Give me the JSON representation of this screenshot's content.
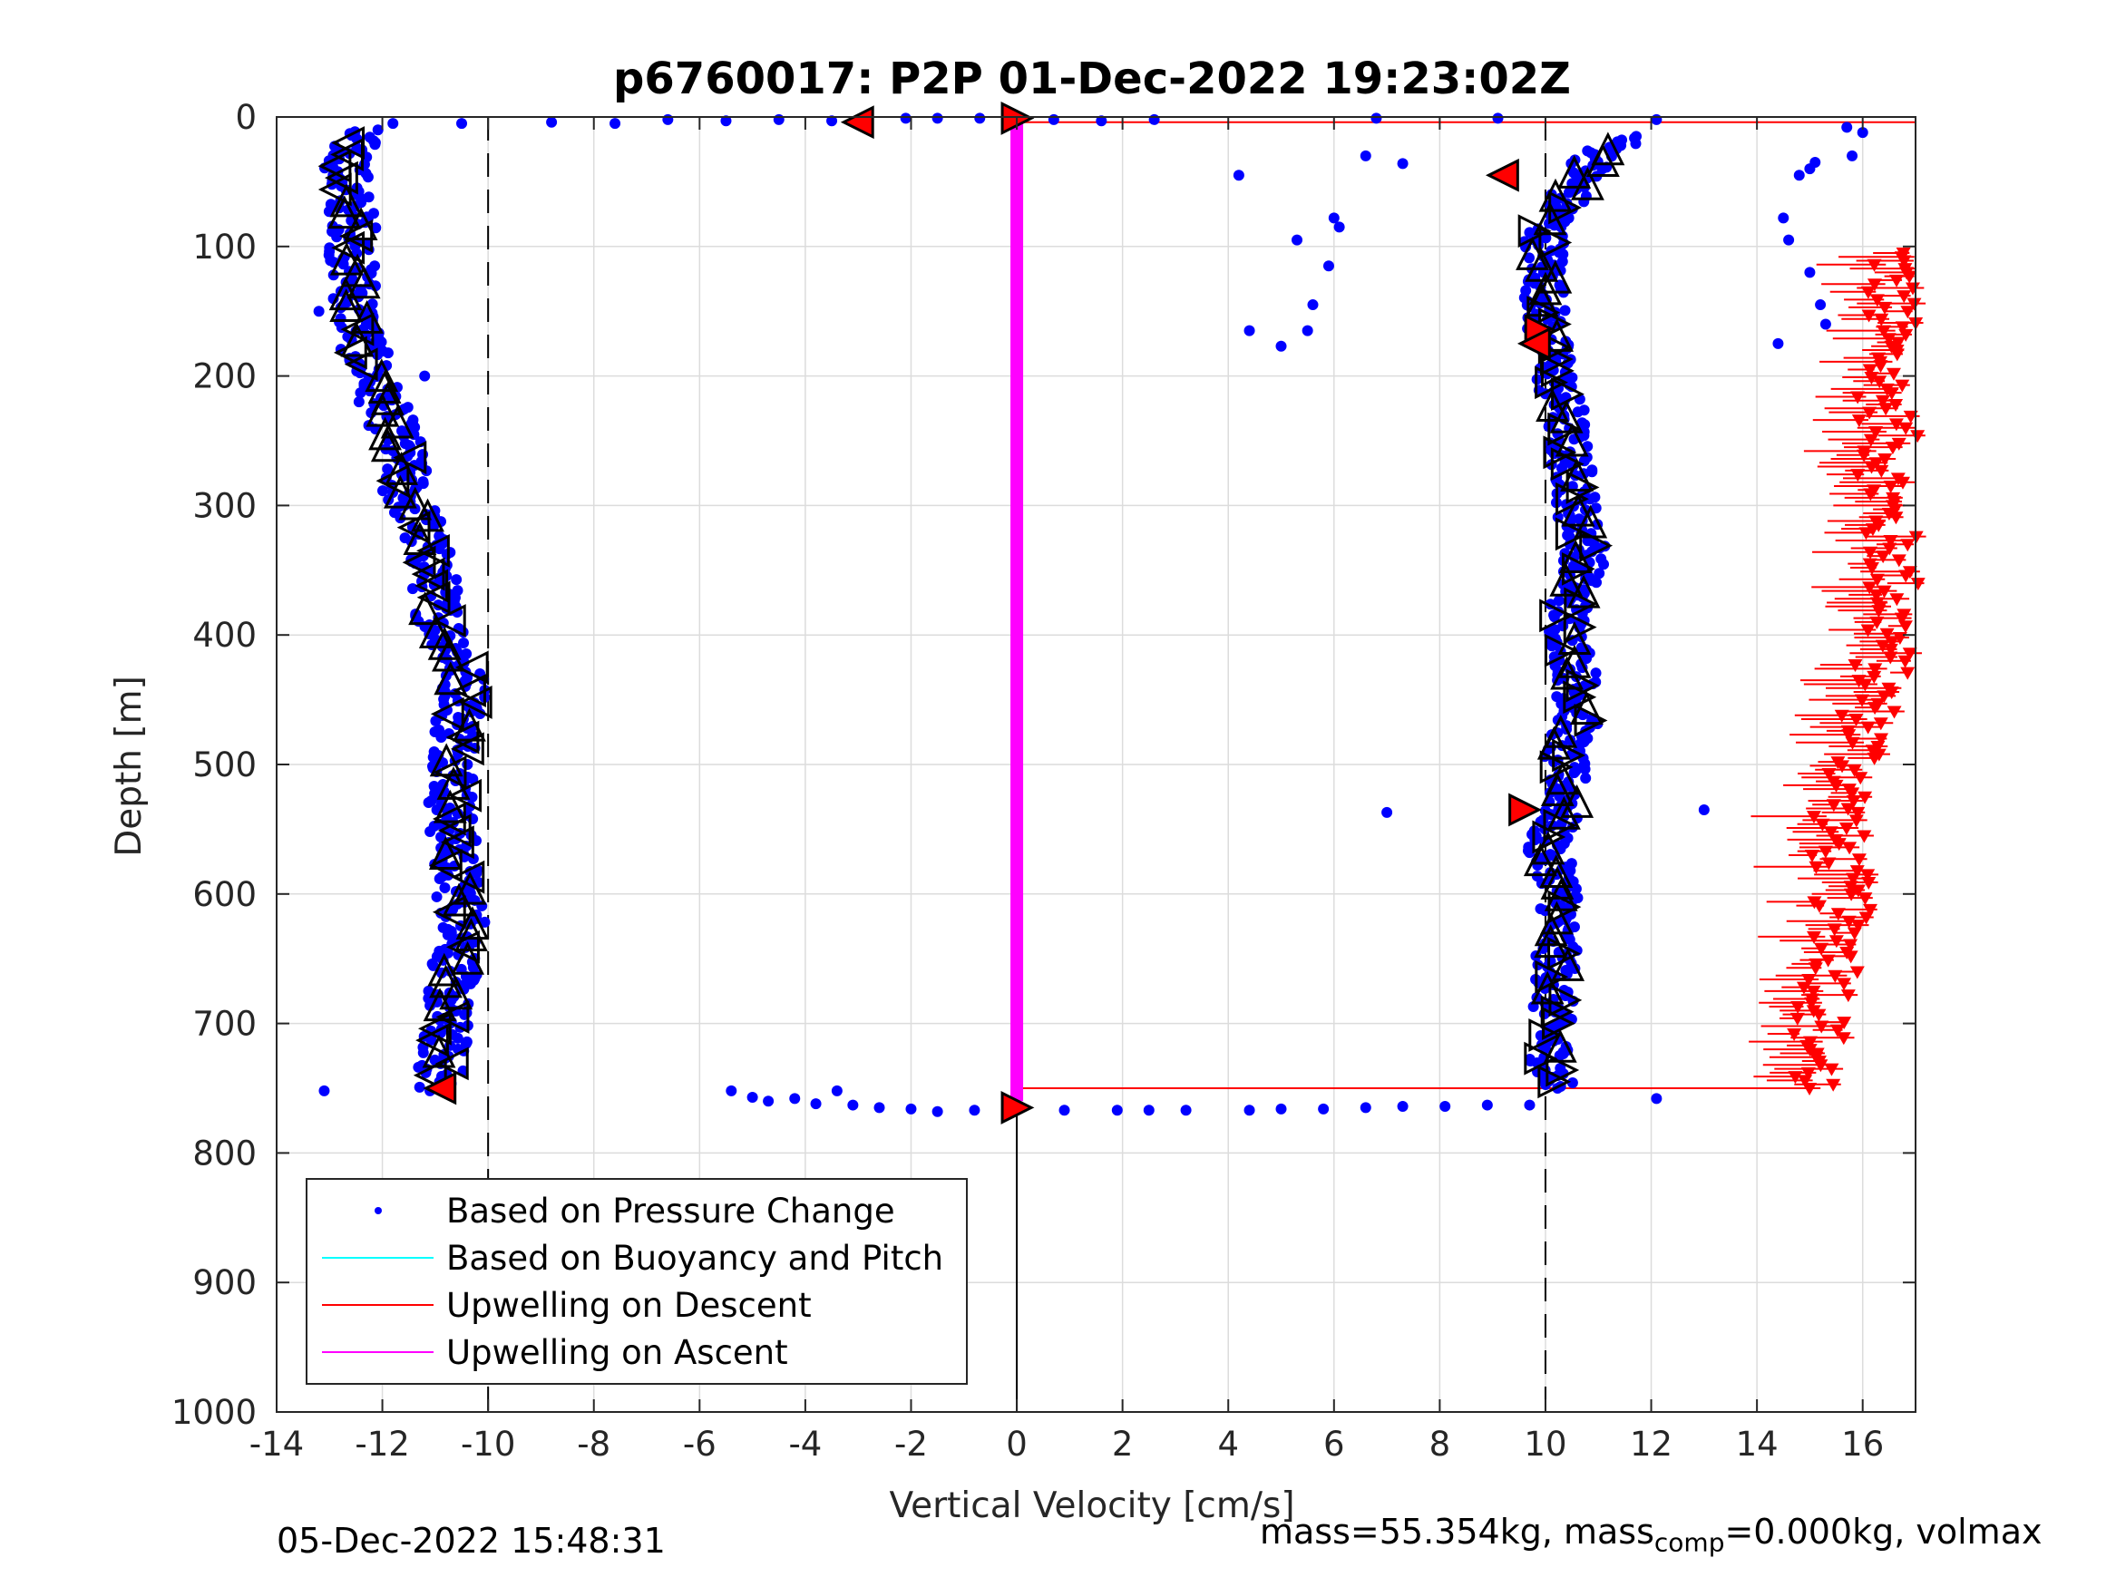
{
  "chart_data": {
    "type": "scatter",
    "title": "p6760017: P2P 01-Dec-2022 19:23:02Z",
    "xlabel": "Vertical Velocity [cm/s]",
    "ylabel": "Depth [m]",
    "xlim": [
      -14,
      17
    ],
    "ylim": [
      0,
      1000
    ],
    "y_reversed": true,
    "grid": true,
    "x_ticks": [
      -14,
      -12,
      -10,
      -8,
      -6,
      -4,
      -2,
      0,
      2,
      4,
      6,
      8,
      10,
      12,
      14,
      16
    ],
    "y_ticks": [
      0,
      100,
      200,
      300,
      400,
      500,
      600,
      700,
      800,
      900,
      1000
    ],
    "reference_lines": {
      "dashed_x": [
        -10,
        10
      ],
      "solid_x": [
        0
      ]
    },
    "legend": {
      "placement": "bottom-left",
      "entries": [
        {
          "label": "Based on Pressure Change",
          "color": "#0000ff",
          "marker": "dot"
        },
        {
          "label": "Based on Buoyancy and Pitch",
          "color": "#00ffff",
          "marker": "line"
        },
        {
          "label": "Upwelling on Descent",
          "color": "#ff0000",
          "marker": "line"
        },
        {
          "label": "Upwelling on Ascent",
          "color": "#ff00ff",
          "marker": "line"
        }
      ]
    },
    "series": [
      {
        "name": "Based on Pressure Change",
        "color": "#0000ff",
        "descent_profile": [
          [
            -12.5,
            10
          ],
          [
            -12.6,
            30
          ],
          [
            -12.7,
            50
          ],
          [
            -12.6,
            70
          ],
          [
            -12.5,
            90
          ],
          [
            -12.6,
            110
          ],
          [
            -12.5,
            130
          ],
          [
            -12.5,
            150
          ],
          [
            -12.4,
            170
          ],
          [
            -12.3,
            190
          ],
          [
            -12.1,
            210
          ],
          [
            -11.9,
            230
          ],
          [
            -11.7,
            250
          ],
          [
            -11.6,
            270
          ],
          [
            -11.6,
            290
          ],
          [
            -11.3,
            310
          ],
          [
            -11.2,
            330
          ],
          [
            -11.0,
            350
          ],
          [
            -11.0,
            370
          ],
          [
            -10.9,
            390
          ],
          [
            -10.6,
            410
          ],
          [
            -10.5,
            430
          ],
          [
            -10.4,
            450
          ],
          [
            -10.6,
            470
          ],
          [
            -10.6,
            490
          ],
          [
            -10.6,
            510
          ],
          [
            -10.7,
            530
          ],
          [
            -10.7,
            550
          ],
          [
            -10.6,
            570
          ],
          [
            -10.6,
            590
          ],
          [
            -10.5,
            610
          ],
          [
            -10.4,
            630
          ],
          [
            -10.6,
            650
          ],
          [
            -10.7,
            670
          ],
          [
            -10.8,
            690
          ],
          [
            -10.8,
            710
          ],
          [
            -10.9,
            730
          ],
          [
            -10.9,
            750
          ]
        ],
        "ascent_profile": [
          [
            10.2,
            750
          ],
          [
            10.1,
            730
          ],
          [
            10.1,
            710
          ],
          [
            10.1,
            690
          ],
          [
            10.2,
            670
          ],
          [
            10.2,
            650
          ],
          [
            10.2,
            630
          ],
          [
            10.3,
            610
          ],
          [
            10.3,
            590
          ],
          [
            10.0,
            570
          ],
          [
            10.1,
            550
          ],
          [
            10.4,
            530
          ],
          [
            10.4,
            510
          ],
          [
            10.3,
            490
          ],
          [
            10.6,
            470
          ],
          [
            10.6,
            450
          ],
          [
            10.6,
            430
          ],
          [
            10.5,
            410
          ],
          [
            10.4,
            390
          ],
          [
            10.5,
            370
          ],
          [
            10.7,
            350
          ],
          [
            10.8,
            330
          ],
          [
            10.6,
            310
          ],
          [
            10.6,
            290
          ],
          [
            10.5,
            270
          ],
          [
            10.4,
            250
          ],
          [
            10.4,
            230
          ],
          [
            10.2,
            210
          ],
          [
            10.2,
            190
          ],
          [
            10.0,
            170
          ],
          [
            10.0,
            150
          ],
          [
            10.0,
            130
          ],
          [
            10.0,
            110
          ],
          [
            10.0,
            90
          ],
          [
            10.3,
            70
          ],
          [
            10.6,
            50
          ],
          [
            11.0,
            30
          ],
          [
            11.6,
            15
          ]
        ],
        "surface_transition": [
          [
            -11.8,
            5
          ],
          [
            -10.5,
            5
          ],
          [
            -8.8,
            4
          ],
          [
            -7.6,
            5
          ],
          [
            -6.6,
            2
          ],
          [
            -5.5,
            3
          ],
          [
            -4.5,
            2
          ],
          [
            -3.5,
            3
          ],
          [
            -2.1,
            1
          ],
          [
            -1.5,
            1
          ],
          [
            -0.7,
            1
          ],
          [
            0.7,
            2
          ],
          [
            1.6,
            3
          ],
          [
            2.6,
            2
          ],
          [
            6.8,
            1
          ],
          [
            9.1,
            1
          ],
          [
            12.1,
            2
          ]
        ],
        "bottom_transition": [
          [
            -5.4,
            752
          ],
          [
            -5.0,
            757
          ],
          [
            -4.7,
            760
          ],
          [
            -4.2,
            758
          ],
          [
            -3.8,
            762
          ],
          [
            -3.4,
            752
          ],
          [
            -3.1,
            763
          ],
          [
            -2.6,
            765
          ],
          [
            -2.0,
            766
          ],
          [
            -1.5,
            768
          ],
          [
            -0.8,
            767
          ],
          [
            0.9,
            767
          ],
          [
            1.9,
            767
          ],
          [
            2.5,
            767
          ],
          [
            3.2,
            767
          ],
          [
            4.4,
            767
          ],
          [
            5.0,
            766
          ],
          [
            5.8,
            766
          ],
          [
            6.6,
            765
          ],
          [
            7.3,
            764
          ],
          [
            8.1,
            764
          ],
          [
            8.9,
            763
          ],
          [
            9.7,
            763
          ],
          [
            12.1,
            758
          ]
        ],
        "outliers": [
          [
            -13.2,
            150
          ],
          [
            -13.1,
            752
          ],
          [
            -11.2,
            200
          ],
          [
            -11.1,
            752
          ],
          [
            4.2,
            45
          ],
          [
            4.4,
            165
          ],
          [
            5.0,
            177
          ],
          [
            5.3,
            95
          ],
          [
            5.5,
            165
          ],
          [
            5.6,
            145
          ],
          [
            5.9,
            115
          ],
          [
            6.0,
            78
          ],
          [
            6.1,
            85
          ],
          [
            6.6,
            30
          ],
          [
            7.0,
            537
          ],
          [
            7.3,
            36
          ],
          [
            13.0,
            535
          ],
          [
            14.4,
            175
          ],
          [
            14.5,
            78
          ],
          [
            14.6,
            95
          ],
          [
            14.8,
            45
          ],
          [
            15.0,
            40
          ],
          [
            15.0,
            120
          ],
          [
            15.1,
            35
          ],
          [
            15.2,
            145
          ],
          [
            15.3,
            160
          ],
          [
            15.7,
            8
          ],
          [
            15.8,
            30
          ],
          [
            16.0,
            12
          ]
        ]
      },
      {
        "name": "Upwelling on Descent",
        "color": "#ff0000",
        "descent_x_profile": [
          [
            16.6,
            105
          ],
          [
            16.5,
            150
          ],
          [
            16.4,
            200
          ],
          [
            16.5,
            250
          ],
          [
            16.4,
            300
          ],
          [
            16.6,
            350
          ],
          [
            16.5,
            400
          ],
          [
            16.2,
            450
          ],
          [
            15.9,
            500
          ],
          [
            15.5,
            550
          ],
          [
            15.6,
            600
          ],
          [
            15.6,
            650
          ],
          [
            15.2,
            700
          ],
          [
            15.1,
            750
          ]
        ],
        "surface_line_depth": 4,
        "bottom_line_depth": 750
      },
      {
        "name": "Upwelling on Ascent",
        "color": "#ff00ff",
        "x": 0,
        "depth_range": [
          4,
          760
        ]
      }
    ],
    "markers": {
      "black_triangles_note": "open triangles along both profiles",
      "red_filled_triangles": [
        [
          -3.0,
          4
        ],
        [
          0.0,
          1
        ],
        [
          9.2,
          45
        ],
        [
          9.9,
          165
        ],
        [
          9.8,
          175
        ],
        [
          9.6,
          535
        ],
        [
          -10.9,
          750
        ],
        [
          0.0,
          765
        ]
      ]
    }
  },
  "footer": {
    "date": "05-Dec-2022 15:48:31",
    "mass_prefix": "mass=55.354kg, mass",
    "mass_sub": "comp",
    "mass_suffix": "=0.000kg, volmax"
  }
}
